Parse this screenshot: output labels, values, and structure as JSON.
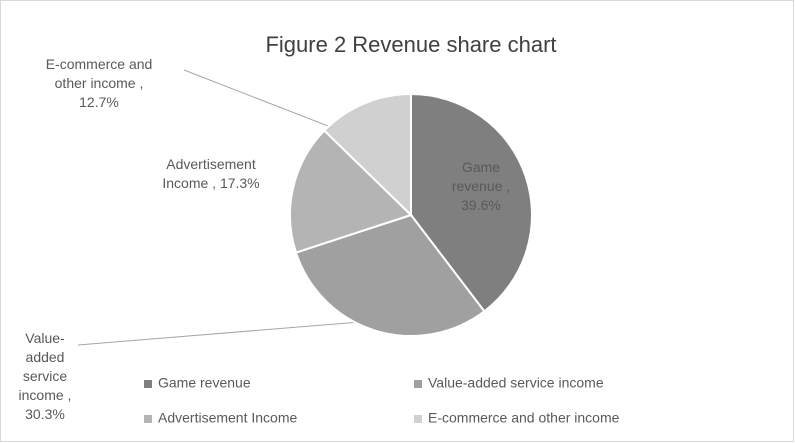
{
  "chart_data": {
    "type": "pie",
    "title": "Figure 2 Revenue share chart",
    "categories": [
      "Game revenue",
      "Value-added service income",
      "Advertisement Income",
      "E-commerce and other income"
    ],
    "values": [
      39.6,
      30.3,
      17.3,
      12.7
    ],
    "value_labels": [
      "Game revenue , 39.6%",
      "Value-added service income , 30.3%",
      "Advertisement Income , 17.3%",
      "E-commerce and other income , 12.7%"
    ],
    "colors": [
      "#7f7f7f",
      "#a0a0a0",
      "#b4b4b4",
      "#d0d0d0"
    ],
    "legend": "bottom"
  }
}
